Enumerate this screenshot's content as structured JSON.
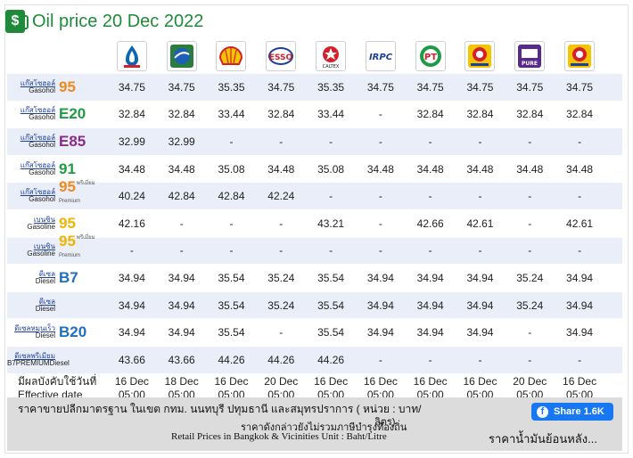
{
  "header": {
    "title": "Oil price 20 Dec 2022",
    "icon": "fuel-pump-icon"
  },
  "brands": [
    {
      "name": "ptt-logo",
      "color": "#0a67b4"
    },
    {
      "name": "bangchak-logo",
      "color": "#2a7d3e"
    },
    {
      "name": "shell-logo",
      "color": "#e8b100"
    },
    {
      "name": "esso-logo",
      "color": "#d4202a"
    },
    {
      "name": "caltex-logo",
      "color": "#d4202a"
    },
    {
      "name": "irpc-logo",
      "color": "#1d3f9c"
    },
    {
      "name": "pt-logo",
      "color": "#1d9c45"
    },
    {
      "name": "susco-logo",
      "color": "#e8b100"
    },
    {
      "name": "pure-logo",
      "color": "#5a2a8a"
    },
    {
      "name": "susco-dealers-logo",
      "color": "#e8b100"
    }
  ],
  "rows": [
    {
      "th": "แก๊สโซฮอล์",
      "en": "Gasohol",
      "code": "95",
      "code_color": "#f08a1c",
      "sup": "",
      "values": [
        "34.75",
        "34.75",
        "35.35",
        "34.75",
        "35.35",
        "34.75",
        "34.75",
        "34.75",
        "34.75",
        "34.75"
      ]
    },
    {
      "th": "แก๊สโซฮอล์",
      "en": "Gasohol",
      "code": "E20",
      "code_color": "#1d9c45",
      "sup": "",
      "values": [
        "32.84",
        "32.84",
        "33.44",
        "32.84",
        "33.44",
        "-",
        "32.84",
        "32.84",
        "32.84",
        "32.84"
      ]
    },
    {
      "th": "แก๊สโซฮอล์",
      "en": "Gasohol",
      "code": "E85",
      "code_color": "#8a2a8a",
      "sup": "",
      "values": [
        "32.99",
        "32.99",
        "-",
        "-",
        "-",
        "-",
        "-",
        "-",
        "-",
        "-"
      ]
    },
    {
      "th": "แก๊สโซฮอล์",
      "en": "Gasohol",
      "code": "91",
      "code_color": "#1d9c45",
      "sup": "",
      "values": [
        "34.48",
        "34.48",
        "35.08",
        "34.48",
        "35.08",
        "34.48",
        "34.48",
        "34.48",
        "34.48",
        "34.48"
      ]
    },
    {
      "th": "แก๊สโซฮอล์",
      "en": "Gasohol",
      "code": "95",
      "code_color": "#f08a1c",
      "sup": "พรีเมี่ยม Premium",
      "values": [
        "40.24",
        "42.84",
        "42.84",
        "42.24",
        "-",
        "-",
        "-",
        "-",
        "-",
        "-"
      ]
    },
    {
      "th": "เบนซิน",
      "en": "Gasoline",
      "code": "95",
      "code_color": "#f0b400",
      "sup": "",
      "values": [
        "42.16",
        "-",
        "-",
        "-",
        "43.21",
        "-",
        "42.66",
        "42.61",
        "-",
        "42.61"
      ]
    },
    {
      "th": "เบนซิน",
      "en": "Gasoline",
      "code": "95",
      "code_color": "#f0b400",
      "sup": "พรีเมี่ยม Premium",
      "values": [
        "-",
        "-",
        "-",
        "-",
        "-",
        "-",
        "-",
        "-",
        "-",
        "-"
      ]
    },
    {
      "th": "ดีเซล",
      "en": "Diesel",
      "code": "B7",
      "code_color": "#1d6fc4",
      "sup": "",
      "values": [
        "34.94",
        "34.94",
        "35.54",
        "35.24",
        "35.54",
        "34.94",
        "34.94",
        "34.94",
        "35.24",
        "34.94"
      ]
    },
    {
      "th": "ดีเซล",
      "en": "Diesel",
      "code": "",
      "code_color": "#1d6fc4",
      "sup": "",
      "values": [
        "34.94",
        "34.94",
        "35.54",
        "35.24",
        "35.54",
        "34.94",
        "34.94",
        "34.94",
        "35.24",
        "34.94"
      ]
    },
    {
      "th": "ดีเซลหมุนเร็ว",
      "en": "Diesel",
      "code": "B20",
      "code_color": "#1d6fc4",
      "sup": "",
      "values": [
        "34.94",
        "34.94",
        "35.54",
        "-",
        "35.54",
        "34.94",
        "34.94",
        "34.94",
        "-",
        "34.94"
      ]
    },
    {
      "th": "ดีเซลพรีเมียม",
      "en": "B7PREMIUMDiesel",
      "code": "",
      "code_color": "#1d6fc4",
      "sup": "",
      "values": [
        "43.66",
        "43.66",
        "44.26",
        "44.26",
        "44.26",
        "-",
        "-",
        "-",
        "-",
        "-"
      ]
    }
  ],
  "footer": {
    "label_line1": "มีผลบังคับใช้วันที่",
    "label_line2": "Effective date",
    "dates": [
      "16 Dec",
      "18 Dec",
      "16 Dec",
      "20 Dec",
      "16 Dec",
      "16 Dec",
      "16 Dec",
      "16 Dec",
      "20 Dec",
      "16 Dec"
    ],
    "times": [
      "05:00",
      "05:00",
      "05:00",
      "05:00",
      "05:00",
      "05:00",
      "05:00",
      "05:00",
      "05:00",
      "05:00"
    ]
  },
  "notice": {
    "line1": "ราคาขายปลีกมาตรฐาน ในเขต กทม. นนทบุรี ปทุมธานี และสมุทรปราการ ( หน่วย : บาท/",
    "line1b": "ลิตร)",
    "line2": "ราคาดังกล่าวยังไม่รวมภาษีบำรุงท้องถิ่น",
    "line3": "Retail Prices in Bangkok & Vicinities Unit : Baht/Litre",
    "share_label": "Share 1.6K",
    "history_link": "ราคาน้ำมันย้อนหลัง..."
  }
}
